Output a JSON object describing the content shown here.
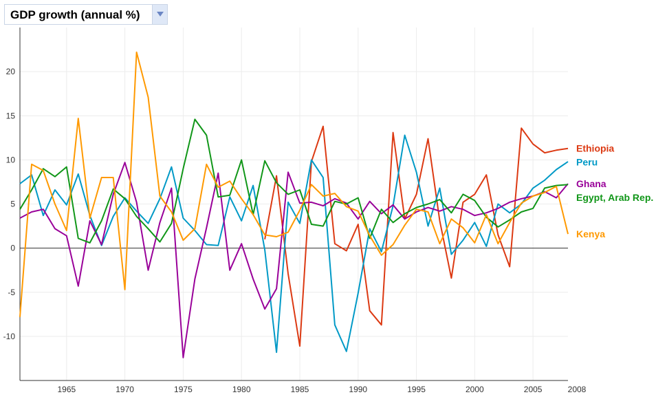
{
  "indicator_selector": {
    "label": "GDP growth (annual %)",
    "icon": "chevron-down-icon"
  },
  "chart_data": {
    "type": "line",
    "title": "GDP growth (annual %)",
    "xlabel": "",
    "ylabel": "",
    "x": [
      1961,
      1962,
      1963,
      1964,
      1965,
      1966,
      1967,
      1968,
      1969,
      1970,
      1971,
      1972,
      1973,
      1974,
      1975,
      1976,
      1977,
      1978,
      1979,
      1980,
      1981,
      1982,
      1983,
      1984,
      1985,
      1986,
      1987,
      1988,
      1989,
      1990,
      1991,
      1992,
      1993,
      1994,
      1995,
      1996,
      1997,
      1998,
      1999,
      2000,
      2001,
      2002,
      2003,
      2004,
      2005,
      2006,
      2007,
      2008
    ],
    "xlim": [
      1961,
      2008
    ],
    "ylim": [
      -15,
      25
    ],
    "x_ticks": [
      1965,
      1970,
      1975,
      1980,
      1985,
      1990,
      1995,
      2000,
      2005
    ],
    "x_end_label": "2008",
    "y_ticks": [
      -10,
      -5,
      0,
      5,
      10,
      15,
      20
    ],
    "grid": true,
    "legend": "end-of-line labels, right",
    "series": [
      {
        "name": "Ethiopia",
        "color": "#dc3912",
        "x": [
          1982,
          1983,
          1984,
          1985,
          1986,
          1987,
          1988,
          1989,
          1990,
          1991,
          1992,
          1993,
          1994,
          1995,
          1996,
          1997,
          1998,
          1999,
          2000,
          2001,
          2002,
          2003,
          2004,
          2005,
          2006,
          2007,
          2008
        ],
        "values": [
          1.0,
          8.2,
          -2.9,
          -11.1,
          9.8,
          13.8,
          0.5,
          -0.3,
          2.7,
          -7.1,
          -8.7,
          13.1,
          3.3,
          6.1,
          12.4,
          3.1,
          -3.4,
          5.2,
          6.1,
          8.3,
          1.5,
          -2.1,
          13.6,
          11.8,
          10.8,
          11.1,
          11.3
        ]
      },
      {
        "name": "Peru",
        "color": "#0099c6",
        "values": [
          7.3,
          8.3,
          3.7,
          6.6,
          4.9,
          8.4,
          3.7,
          0.3,
          3.6,
          5.7,
          4.2,
          2.8,
          5.6,
          9.2,
          3.4,
          2.0,
          0.4,
          0.3,
          5.8,
          3.1,
          7.1,
          -0.2,
          -11.8,
          5.2,
          2.8,
          10.0,
          8.0,
          -8.7,
          -11.7,
          -5.1,
          2.2,
          -0.4,
          4.8,
          12.8,
          8.6,
          2.5,
          6.8,
          -0.7,
          0.9,
          2.9,
          0.2,
          5.0,
          4.0,
          5.0,
          6.8,
          7.7,
          8.9,
          9.8
        ]
      },
      {
        "name": "Ghana",
        "color": "#990099",
        "values": [
          3.4,
          4.1,
          4.4,
          2.2,
          1.4,
          -4.3,
          3.1,
          0.4,
          6.1,
          9.7,
          5.2,
          -2.5,
          2.9,
          6.8,
          -12.4,
          -3.5,
          2.3,
          8.5,
          -2.5,
          0.5,
          -3.5,
          -6.9,
          -4.6,
          8.6,
          5.1,
          5.2,
          4.8,
          5.6,
          5.1,
          3.3,
          5.3,
          3.9,
          4.9,
          3.3,
          4.1,
          4.6,
          4.2,
          4.7,
          4.4,
          3.7,
          4.0,
          4.5,
          5.2,
          5.6,
          5.9,
          6.4,
          5.7,
          7.3
        ]
      },
      {
        "name": "Egypt, Arab Rep.",
        "color": "#109618",
        "values": [
          4.4,
          6.6,
          9.0,
          8.1,
          9.2,
          1.1,
          0.6,
          3.1,
          6.7,
          5.6,
          3.6,
          2.2,
          0.7,
          2.8,
          9.0,
          14.6,
          12.8,
          5.8,
          6.0,
          10.0,
          3.8,
          9.9,
          7.4,
          6.1,
          6.6,
          2.7,
          2.5,
          5.3,
          5.0,
          5.7,
          1.1,
          4.4,
          2.9,
          3.9,
          4.6,
          5.0,
          5.5,
          4.0,
          6.1,
          5.4,
          3.5,
          2.4,
          3.2,
          4.1,
          4.5,
          6.8,
          7.1,
          7.2
        ]
      },
      {
        "name": "Kenya",
        "color": "#ff9900",
        "values": [
          -7.8,
          9.5,
          8.8,
          5.0,
          2.0,
          14.7,
          3.4,
          8.0,
          8.0,
          -4.7,
          22.2,
          17.1,
          5.9,
          4.1,
          0.9,
          2.2,
          9.5,
          6.9,
          7.6,
          5.6,
          3.8,
          1.5,
          1.3,
          1.8,
          4.3,
          7.2,
          5.9,
          6.2,
          4.7,
          4.2,
          1.4,
          -0.8,
          0.4,
          2.6,
          4.4,
          4.1,
          0.5,
          3.3,
          2.3,
          0.6,
          3.8,
          0.5,
          2.9,
          5.1,
          5.9,
          6.3,
          7.0,
          1.6
        ]
      }
    ]
  }
}
